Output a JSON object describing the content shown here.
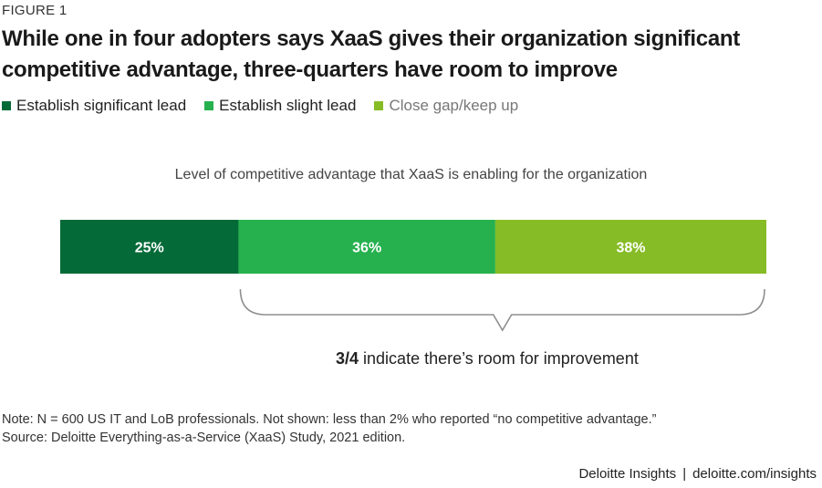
{
  "figure_label": "FIGURE 1",
  "title_line1": "While one in four adopters says XaaS gives their organization significant",
  "title_line2": "competitive advantage, three-quarters have room to improve",
  "colors": {
    "significant_lead": "#046A38",
    "slight_lead": "#26B14E",
    "close_gap": "#86BC25"
  },
  "chart_data": {
    "type": "bar",
    "orientation": "horizontal-stacked-100",
    "title": "Level of competitive advantage that XaaS is enabling for the organization",
    "categories": [
      "Level of competitive advantage"
    ],
    "series": [
      {
        "name": "Establish significant lead",
        "values": [
          25
        ],
        "label": "25%",
        "color": "#046A38"
      },
      {
        "name": "Establish slight lead",
        "values": [
          36
        ],
        "label": "36%",
        "color": "#26B14E"
      },
      {
        "name": "Close gap/keep up",
        "values": [
          38
        ],
        "label": "38%",
        "color": "#86BC25"
      }
    ],
    "total_scale": 99,
    "annotation": {
      "bold": "3/4",
      "text": " indicate there’s room for improvement",
      "spans_series": [
        "Establish slight lead",
        "Close gap/keep up"
      ]
    }
  },
  "note_line1": "Note: N = 600 US IT and LoB professionals. Not shown: less than 2% who reported “no competitive advantage.”",
  "note_line2": "Source: Deloitte Everything-as-a-Service (XaaS) Study, 2021 edition.",
  "footer": {
    "brand": "Deloitte Insights",
    "separator": "|",
    "url": "deloitte.com/insights"
  }
}
